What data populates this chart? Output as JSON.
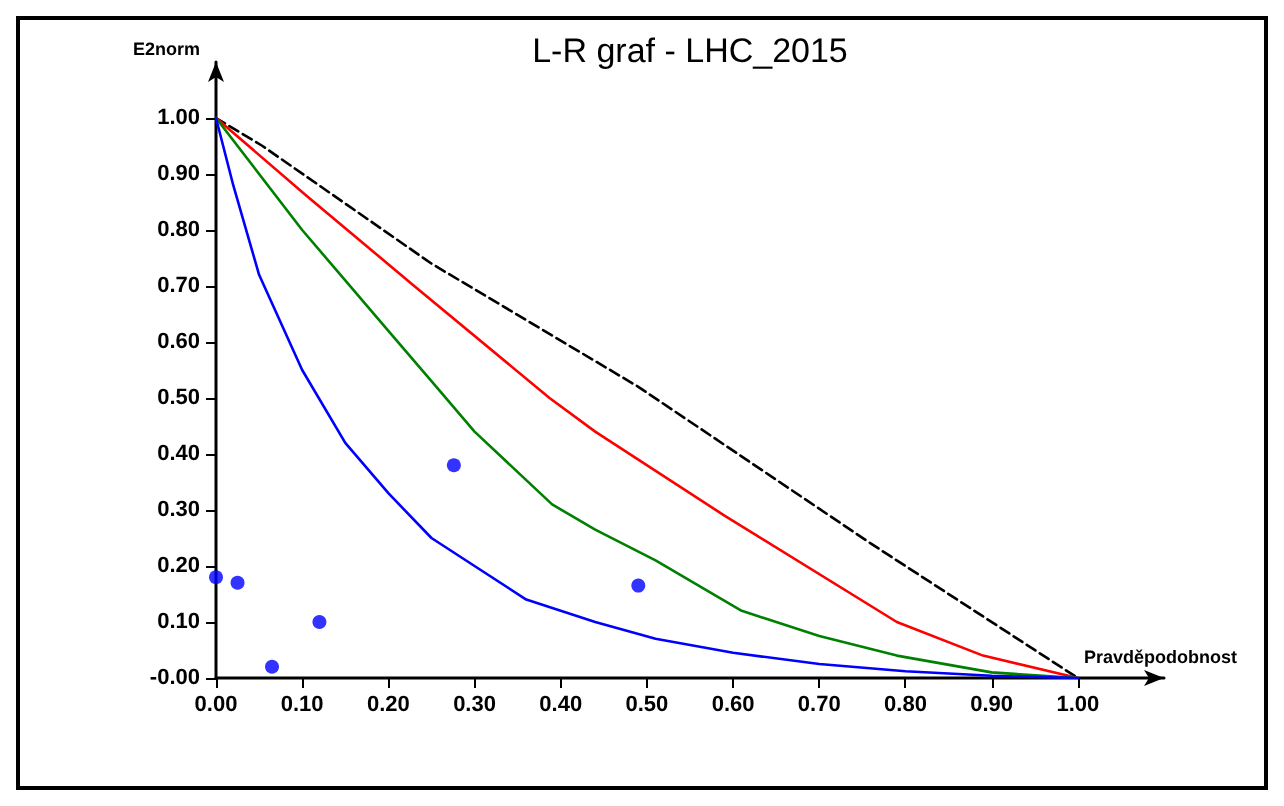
{
  "chart_data": {
    "type": "line",
    "title": "L-R graf - LHC_2015",
    "xlabel": "Pravděpodobnost",
    "ylabel": "E2norm",
    "xlim": [
      0,
      1.1
    ],
    "ylim": [
      0,
      1.1
    ],
    "grid": false,
    "xticks": [
      {
        "value": 0,
        "label": "0.00"
      },
      {
        "value": 0.1,
        "label": "0.10"
      },
      {
        "value": 0.2,
        "label": "0.20"
      },
      {
        "value": 0.3,
        "label": "0.30"
      },
      {
        "value": 0.4,
        "label": "0.40"
      },
      {
        "value": 0.5,
        "label": "0.50"
      },
      {
        "value": 0.6,
        "label": "0.60"
      },
      {
        "value": 0.7,
        "label": "0.70"
      },
      {
        "value": 0.8,
        "label": "0.80"
      },
      {
        "value": 0.9,
        "label": "0.90"
      },
      {
        "value": 1,
        "label": "1.00"
      }
    ],
    "yticks": [
      {
        "value": 0,
        "label": "-0.00"
      },
      {
        "value": 0.1,
        "label": "0.10"
      },
      {
        "value": 0.2,
        "label": "0.20"
      },
      {
        "value": 0.3,
        "label": "0.30"
      },
      {
        "value": 0.4,
        "label": "0.40"
      },
      {
        "value": 0.5,
        "label": "0.50"
      },
      {
        "value": 0.6,
        "label": "0.60"
      },
      {
        "value": 0.7,
        "label": "0.70"
      },
      {
        "value": 0.8,
        "label": "0.80"
      },
      {
        "value": 0.9,
        "label": "0.90"
      },
      {
        "value": 1,
        "label": "1.00"
      }
    ],
    "series": [
      {
        "type": "line",
        "color": "#000000",
        "line_style": "dashed",
        "marker": "none",
        "x": [
          0,
          0.054,
          0.25,
          0.49,
          0.76,
          1
        ],
        "values": [
          1,
          0.95,
          0.74,
          0.52,
          0.24,
          0
        ]
      },
      {
        "type": "line",
        "color": "#ff0000",
        "line_style": "solid",
        "marker": "none",
        "x": [
          0,
          0.106,
          0.23,
          0.387,
          0.44,
          0.59,
          0.79,
          0.89,
          1
        ],
        "values": [
          1,
          0.86,
          0.7,
          0.5,
          0.44,
          0.29,
          0.1,
          0.04,
          0
        ]
      },
      {
        "type": "line",
        "color": "#008000",
        "line_style": "solid",
        "marker": "none",
        "x": [
          0,
          0.1,
          0.2,
          0.25,
          0.3,
          0.39,
          0.44,
          0.51,
          0.61,
          0.7,
          0.79,
          0.9,
          1
        ],
        "values": [
          1,
          0.8,
          0.62,
          0.53,
          0.44,
          0.31,
          0.265,
          0.21,
          0.12,
          0.075,
          0.04,
          0.01,
          0
        ]
      },
      {
        "type": "line",
        "color": "#0000ff",
        "line_style": "solid",
        "marker": "none",
        "x": [
          0,
          0.02,
          0.05,
          0.1,
          0.15,
          0.2,
          0.25,
          0.3,
          0.36,
          0.44,
          0.51,
          0.6,
          0.7,
          0.8,
          0.9,
          1
        ],
        "values": [
          1,
          0.88,
          0.72,
          0.55,
          0.42,
          0.33,
          0.25,
          0.2,
          0.14,
          0.1,
          0.07,
          0.045,
          0.025,
          0.012,
          0.004,
          0
        ]
      },
      {
        "type": "scatter",
        "color": "#0000ff",
        "marker": "circle",
        "x": [
          0,
          0.025,
          0.065,
          0.12,
          0.276,
          0.49
        ],
        "values": [
          0.18,
          0.17,
          0.02,
          0.1,
          0.38,
          0.165
        ]
      }
    ]
  }
}
